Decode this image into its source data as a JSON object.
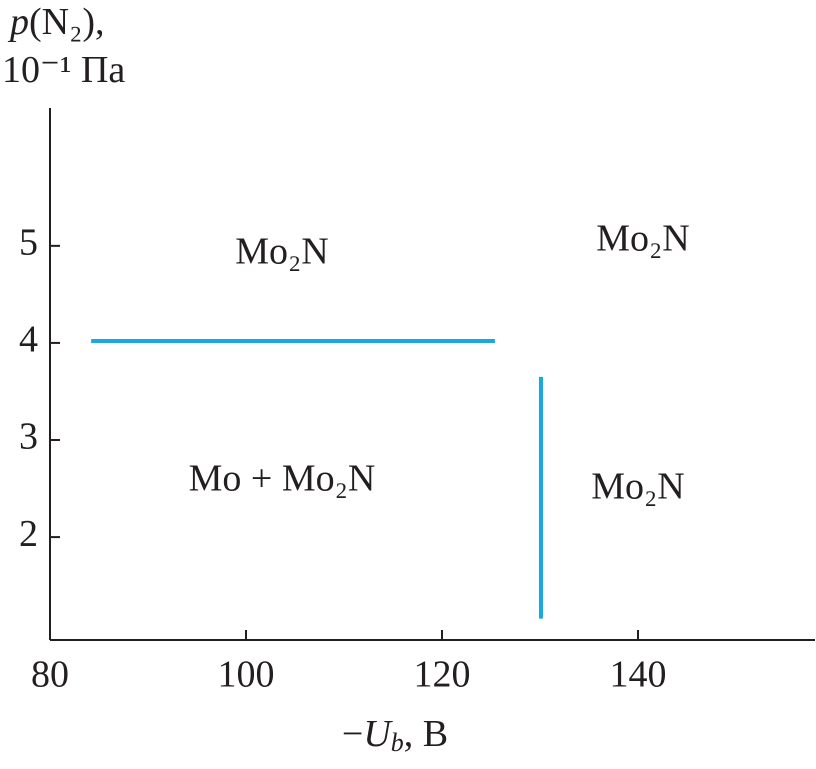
{
  "chart_data": {
    "type": "line",
    "ylabel": [
      [
        "p",
        "(N₂),"
      ],
      [
        "10⁻¹ Па"
      ]
    ],
    "xlabel": [
      "−",
      "U",
      "b",
      ", В"
    ],
    "xlim": [
      80,
      158
    ],
    "ylim": [
      0.94,
      6.42
    ],
    "xticks": [
      80,
      100,
      120,
      140
    ],
    "yticks": [
      2,
      3,
      4,
      5
    ],
    "series": [
      {
        "color": "#1ba8e0",
        "x": [
          84.2,
          125.4
        ],
        "values": [
          4.02,
          4.02
        ]
      },
      {
        "color": "#1ba8e0",
        "x": [
          130.1,
          130.1
        ],
        "values": [
          3.65,
          1.16
        ]
      }
    ],
    "annotations": [
      "Mo₂N",
      "Mo₂N",
      "Mo + Mo₂N",
      "Mo₂N"
    ]
  }
}
